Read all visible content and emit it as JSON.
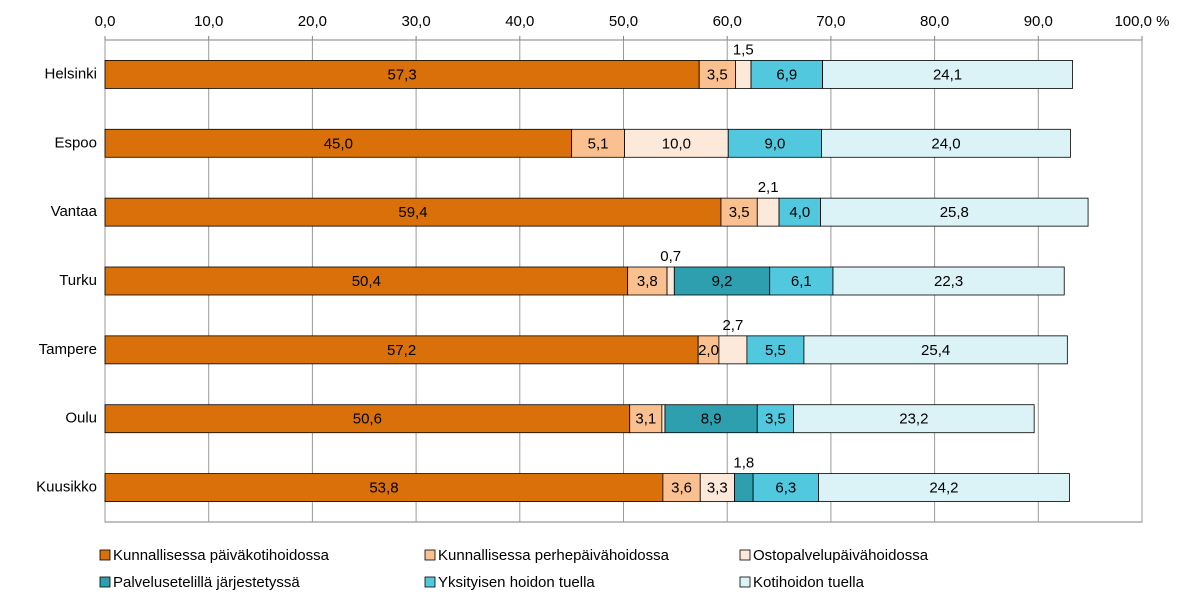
{
  "chart_data": {
    "type": "stacked_barh",
    "categories": [
      "Helsinki",
      "Espoo",
      "Vantaa",
      "Turku",
      "Tampere",
      "Oulu",
      "Kuusikko"
    ],
    "series": [
      {
        "name": "Kunnallisessa päiväkotihoidossa",
        "color": "#D9700A",
        "values": [
          57.3,
          45.0,
          59.4,
          50.4,
          57.2,
          50.6,
          53.8
        ],
        "value_labels": [
          "57,3",
          "45,0",
          "59,4",
          "50,4",
          "57,2",
          "50,6",
          "53,8"
        ]
      },
      {
        "name": "Kunnallisessa perhepäivähoidossa",
        "color": "#FAC090",
        "values": [
          3.5,
          5.1,
          3.5,
          3.8,
          2.0,
          3.1,
          3.6
        ],
        "value_labels": [
          "3,5",
          "5,1",
          "3,5",
          "3,8",
          "2,0",
          "3,1",
          "3,6"
        ]
      },
      {
        "name": "Ostopalvelupäivähoidossa",
        "color": "#FDE9D9",
        "values": [
          1.5,
          10.0,
          2.1,
          0.7,
          2.7,
          0.3,
          3.3
        ],
        "value_labels": [
          "1,5",
          "10,0",
          "2,1",
          "0,7",
          "2,7",
          null,
          "3,3"
        ]
      },
      {
        "name": "Palvelusetelillä järjestetyssä",
        "color": "#2E9FAF",
        "values": [
          0,
          0,
          0,
          9.2,
          0,
          8.9,
          1.8
        ],
        "value_labels": [
          null,
          null,
          null,
          "9,2",
          null,
          "8,9",
          "1,8"
        ]
      },
      {
        "name": "Yksityisen hoidon tuella",
        "color": "#52C8DF",
        "values": [
          6.9,
          9.0,
          4.0,
          6.1,
          5.5,
          3.5,
          6.3
        ],
        "value_labels": [
          "6,9",
          "9,0",
          "4,0",
          "6,1",
          "5,5",
          "3,5",
          "6,3"
        ]
      },
      {
        "name": "Kotihoidon tuella",
        "color": "#DBF2F7",
        "values": [
          24.1,
          24.0,
          25.8,
          22.3,
          25.4,
          23.2,
          24.2
        ],
        "value_labels": [
          "24,1",
          "24,0",
          "25,8",
          "22,3",
          "25,4",
          "23,2",
          "24,2"
        ]
      }
    ],
    "xlim": [
      0,
      100
    ],
    "xticks": [
      {
        "value": 0,
        "label": "0,0"
      },
      {
        "value": 10,
        "label": "10,0"
      },
      {
        "value": 20,
        "label": "20,0"
      },
      {
        "value": 30,
        "label": "30,0"
      },
      {
        "value": 40,
        "label": "40,0"
      },
      {
        "value": 50,
        "label": "50,0"
      },
      {
        "value": 60,
        "label": "60,0"
      },
      {
        "value": 70,
        "label": "70,0"
      },
      {
        "value": 80,
        "label": "80,0"
      },
      {
        "value": 90,
        "label": "90,0"
      },
      {
        "value": 100,
        "label": "100,0 %"
      }
    ],
    "grid": true,
    "legend": "bottom"
  }
}
